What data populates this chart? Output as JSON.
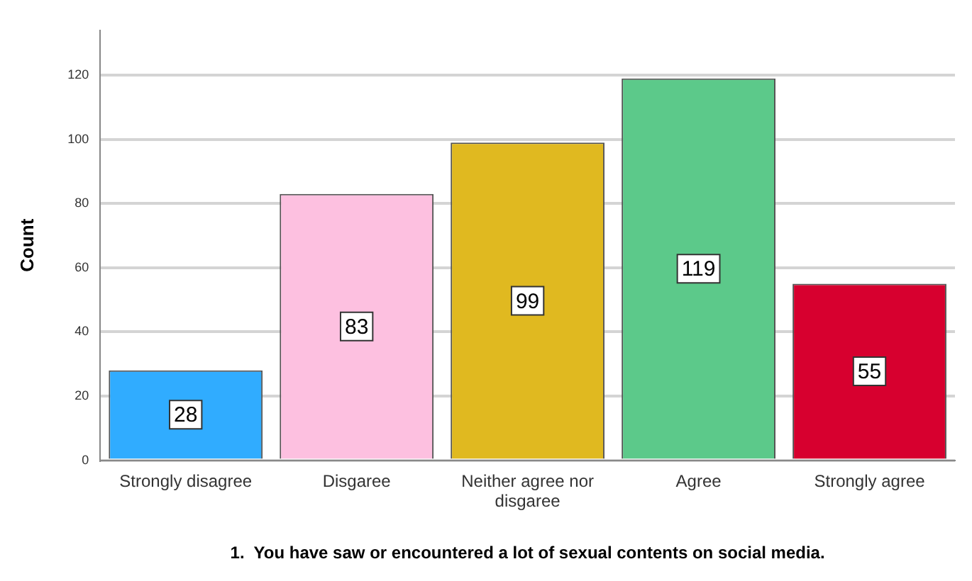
{
  "chart_data": {
    "type": "bar",
    "xlabel": "1.  You have saw or encountered a lot of sexual contents on social media.",
    "ylabel": "Count",
    "categories": [
      "Strongly disagree",
      "Disgaree",
      "Neither agree nor disgaree",
      "Agree",
      "Strongly agree"
    ],
    "values": [
      28,
      83,
      99,
      119,
      55
    ],
    "colors": [
      "#30acff",
      "#fdc0e0",
      "#e0b920",
      "#5cc98a",
      "#d7002f"
    ],
    "ylim": [
      0,
      134
    ],
    "yticks": [
      0,
      20,
      40,
      60,
      80,
      100,
      120
    ],
    "grid": "y",
    "data_labels": true
  }
}
